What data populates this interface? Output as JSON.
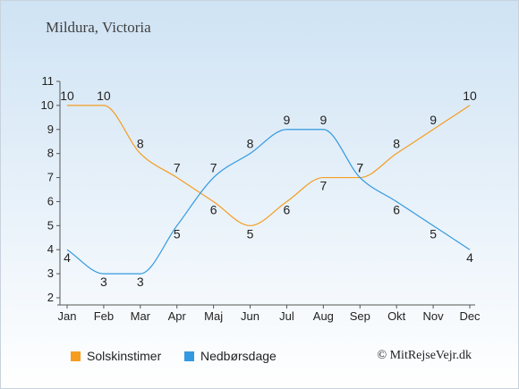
{
  "title": "Mildura, Victoria",
  "credit": "© MitRejseVejr.dk",
  "colors": {
    "sun": "#f59d20",
    "rain": "#3399e0",
    "axis": "#555555"
  },
  "chart_data": {
    "type": "line",
    "categories": [
      "Jan",
      "Feb",
      "Mar",
      "Apr",
      "Maj",
      "Jun",
      "Jul",
      "Aug",
      "Sep",
      "Okt",
      "Nov",
      "Dec"
    ],
    "ylim": [
      2,
      11
    ],
    "yticks": [
      2,
      3,
      4,
      5,
      6,
      7,
      8,
      9,
      10,
      11
    ],
    "grid": false,
    "legend_position": "bottom",
    "series": [
      {
        "name": "Solskinstimer",
        "color": "#f59d20",
        "values": [
          10,
          10,
          8,
          7,
          6,
          5,
          6,
          7,
          7,
          8,
          9,
          10
        ]
      },
      {
        "name": "Nedbørsdage",
        "color": "#3399e0",
        "values": [
          4,
          3,
          3,
          5,
          7,
          8,
          9,
          9,
          7,
          6,
          5,
          4
        ]
      }
    ]
  }
}
